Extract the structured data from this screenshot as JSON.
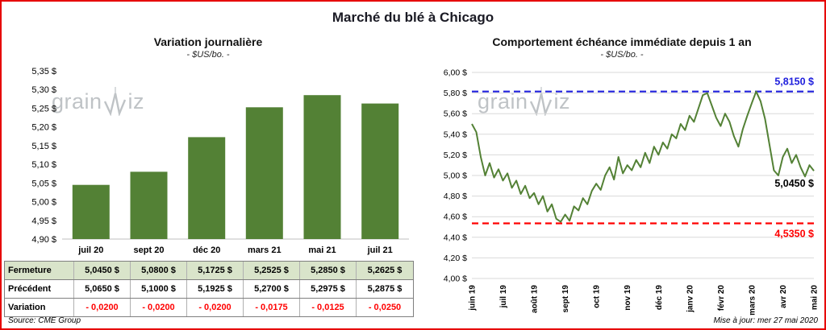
{
  "title": "Marché du blé à Chicago",
  "watermark": {
    "prefix": "grain",
    "suffix": "iz"
  },
  "colors": {
    "border": "#e60000",
    "bar": "#538135",
    "line": "#538135",
    "max_line": "#2020dd",
    "min_line": "#ff0000",
    "grid": "#d9d9d9",
    "table_header_bg": "#d9e4ca",
    "variation_text": "#ff0000"
  },
  "chart_data": [
    {
      "type": "bar",
      "title": "Variation  journalière",
      "subtitle": "- $US/bo. -",
      "categories": [
        "juil 20",
        "sept 20",
        "déc 20",
        "mars 21",
        "mai 21",
        "juil 21"
      ],
      "values": [
        5.045,
        5.08,
        5.1725,
        5.2525,
        5.285,
        5.2625
      ],
      "ylim": [
        4.9,
        5.35
      ],
      "ytick_step": 0.05,
      "ytick_labels": [
        "4,90 $",
        "4,95 $",
        "5,00 $",
        "5,05 $",
        "5,10 $",
        "5,15 $",
        "5,20 $",
        "5,25 $",
        "5,30 $",
        "5,35 $"
      ],
      "grid": false,
      "legend": "none"
    },
    {
      "type": "line",
      "title": "Comportement échéance immédiate depuis 1 an",
      "subtitle": "- $US/bo. -",
      "x_labels": [
        "juin 19",
        "juil 19",
        "août 19",
        "sept 19",
        "oct 19",
        "nov 19",
        "déc 19",
        "janv 20",
        "févr 20",
        "mars 20",
        "avr 20",
        "mai 20"
      ],
      "ylim": [
        4.0,
        6.0
      ],
      "ytick_step": 0.2,
      "ytick_labels": [
        "4,00 $",
        "4,20 $",
        "4,40 $",
        "4,60 $",
        "4,80 $",
        "5,00 $",
        "5,20 $",
        "5,40 $",
        "5,60 $",
        "5,80 $",
        "6,00 $"
      ],
      "grid": true,
      "legend": "none",
      "max_line": {
        "value": 5.815,
        "label": "5,8150 $"
      },
      "min_line": {
        "value": 4.535,
        "label": "4,5350 $"
      },
      "last_label": "5,0450 $",
      "values": [
        5.5,
        5.42,
        5.18,
        5.0,
        5.12,
        4.98,
        5.06,
        4.95,
        5.02,
        4.88,
        4.95,
        4.82,
        4.9,
        4.78,
        4.83,
        4.72,
        4.8,
        4.65,
        4.72,
        4.58,
        4.55,
        4.62,
        4.56,
        4.7,
        4.66,
        4.78,
        4.72,
        4.85,
        4.92,
        4.86,
        5.0,
        5.08,
        4.96,
        5.18,
        5.02,
        5.1,
        5.05,
        5.15,
        5.08,
        5.22,
        5.12,
        5.28,
        5.2,
        5.32,
        5.26,
        5.4,
        5.36,
        5.5,
        5.44,
        5.58,
        5.52,
        5.65,
        5.78,
        5.8,
        5.68,
        5.56,
        5.48,
        5.6,
        5.52,
        5.38,
        5.28,
        5.45,
        5.58,
        5.7,
        5.815,
        5.72,
        5.55,
        5.3,
        5.05,
        5.0,
        5.18,
        5.26,
        5.12,
        5.2,
        5.08,
        4.99,
        5.1,
        5.045
      ]
    }
  ],
  "table": {
    "rows": [
      {
        "label": "Fermeture",
        "style": "fermeture",
        "values": [
          "5,0450  $",
          "5,0800  $",
          "5,1725  $",
          "5,2525  $",
          "5,2850  $",
          "5,2625  $"
        ]
      },
      {
        "label": "Précédent",
        "style": "precedent",
        "values": [
          "5,0650  $",
          "5,1000  $",
          "5,1925  $",
          "5,2700  $",
          "5,2975  $",
          "5,2875  $"
        ]
      },
      {
        "label": "Variation",
        "style": "variation",
        "values": [
          "- 0,0200",
          "- 0,0200",
          "- 0,0200",
          "- 0,0175",
          "- 0,0125",
          "- 0,0250"
        ]
      }
    ]
  },
  "footer": {
    "source": "Source: CME Group",
    "updated": "Mise à jour: mer 27 mai 2020"
  }
}
